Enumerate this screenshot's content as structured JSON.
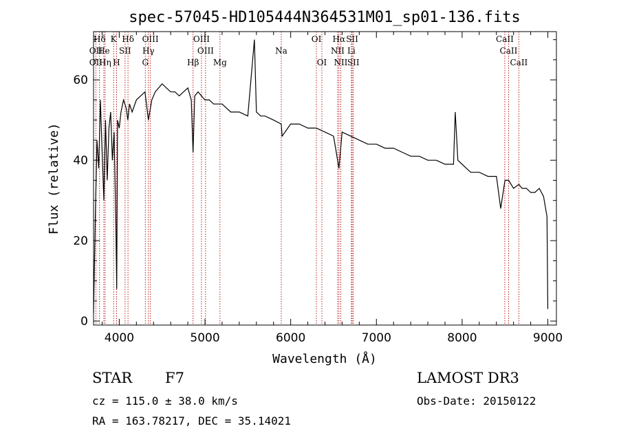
{
  "chart_data": {
    "type": "line",
    "title": "spec-57045-HD105444N364531M01_sp01-136.fits",
    "xlabel": "Wavelength (Å)",
    "ylabel": "Flux (relative)",
    "xlim": [
      3700,
      9100
    ],
    "ylim": [
      -1,
      72
    ],
    "xticks": [
      4000,
      5000,
      6000,
      7000,
      8000,
      9000
    ],
    "yticks": [
      0,
      20,
      40,
      60
    ],
    "series": [
      {
        "name": "flux",
        "x": [
          3700,
          3720,
          3740,
          3760,
          3780,
          3800,
          3820,
          3840,
          3860,
          3880,
          3900,
          3920,
          3940,
          3960,
          3970,
          3980,
          4000,
          4020,
          4050,
          4080,
          4100,
          4120,
          4150,
          4200,
          4250,
          4300,
          4340,
          4380,
          4420,
          4460,
          4500,
          4550,
          4600,
          4650,
          4700,
          4750,
          4800,
          4840,
          4861,
          4880,
          4920,
          4960,
          5000,
          5050,
          5100,
          5150,
          5200,
          5300,
          5400,
          5500,
          5577,
          5600,
          5650,
          5700,
          5800,
          5890,
          5900,
          6000,
          6100,
          6200,
          6300,
          6400,
          6500,
          6563,
          6600,
          6700,
          6800,
          6900,
          7000,
          7100,
          7200,
          7300,
          7400,
          7500,
          7600,
          7700,
          7800,
          7900,
          7920,
          7950,
          8000,
          8050,
          8100,
          8200,
          8300,
          8400,
          8450,
          8500,
          8542,
          8600,
          8662,
          8700,
          8750,
          8800,
          8850,
          8900,
          8950,
          8990,
          9000
        ],
        "values": [
          2,
          25,
          45,
          38,
          55,
          42,
          30,
          50,
          35,
          48,
          52,
          40,
          47,
          25,
          8,
          50,
          48,
          52,
          55,
          53,
          50,
          54,
          52,
          55,
          56,
          57,
          50,
          55,
          57,
          58,
          59,
          58,
          57,
          57,
          56,
          57,
          58,
          55,
          42,
          56,
          57,
          56,
          55,
          55,
          54,
          54,
          54,
          52,
          52,
          51,
          70,
          52,
          51,
          51,
          50,
          49,
          46,
          49,
          49,
          48,
          48,
          47,
          46,
          38,
          47,
          46,
          45,
          44,
          44,
          43,
          43,
          42,
          41,
          41,
          40,
          40,
          39,
          39,
          52,
          40,
          39,
          38,
          37,
          37,
          36,
          36,
          28,
          35,
          35,
          33,
          34,
          33,
          33,
          32,
          32,
          33,
          31,
          26,
          3
        ]
      }
    ],
    "lines": [
      {
        "label": "Hδ",
        "x": 3770,
        "row": 0
      },
      {
        "label": "K",
        "x": 3934,
        "row": 0
      },
      {
        "label": "Hδ",
        "x": 4102,
        "row": 0
      },
      {
        "label": "OIII",
        "x": 4363,
        "row": 0
      },
      {
        "label": "OIII",
        "x": 4959,
        "row": 0
      },
      {
        "label": "OI",
        "x": 6300,
        "row": 0
      },
      {
        "label": "Hα",
        "x": 6563,
        "row": 0
      },
      {
        "label": "SII",
        "x": 6717,
        "row": 0
      },
      {
        "label": "CaII",
        "x": 8498,
        "row": 0
      },
      {
        "label": "OII",
        "x": 3727,
        "row": 1
      },
      {
        "label": "He",
        "x": 3820,
        "row": 1
      },
      {
        "label": "SII",
        "x": 4068,
        "row": 1
      },
      {
        "label": "Hγ",
        "x": 4340,
        "row": 1
      },
      {
        "label": "OIII",
        "x": 5007,
        "row": 1
      },
      {
        "label": "Na",
        "x": 5890,
        "row": 1
      },
      {
        "label": "NII",
        "x": 6548,
        "row": 1
      },
      {
        "label": "Li",
        "x": 6708,
        "row": 1
      },
      {
        "label": "CaII",
        "x": 8542,
        "row": 1
      },
      {
        "label": "OII",
        "x": 3727,
        "row": 2
      },
      {
        "label": "Hη",
        "x": 3835,
        "row": 2
      },
      {
        "label": "H",
        "x": 3969,
        "row": 2
      },
      {
        "label": "G",
        "x": 4304,
        "row": 2
      },
      {
        "label": "Hβ",
        "x": 4861,
        "row": 2
      },
      {
        "label": "Mg",
        "x": 5175,
        "row": 2
      },
      {
        "label": "OI",
        "x": 6364,
        "row": 2
      },
      {
        "label": "NII",
        "x": 6584,
        "row": 2
      },
      {
        "label": "SII",
        "x": 6731,
        "row": 2
      },
      {
        "label": "CaII",
        "x": 8662,
        "row": 2
      }
    ],
    "line_color": "#b40000"
  },
  "info": {
    "object_class": "STAR",
    "subclass": "F7",
    "survey": "LAMOST DR3",
    "cz": "cz = 115.0 ± 38.0 km/s",
    "obs_date": "Obs-Date: 20150122",
    "ra_dec": "RA = 163.78217, DEC =  35.14021"
  }
}
